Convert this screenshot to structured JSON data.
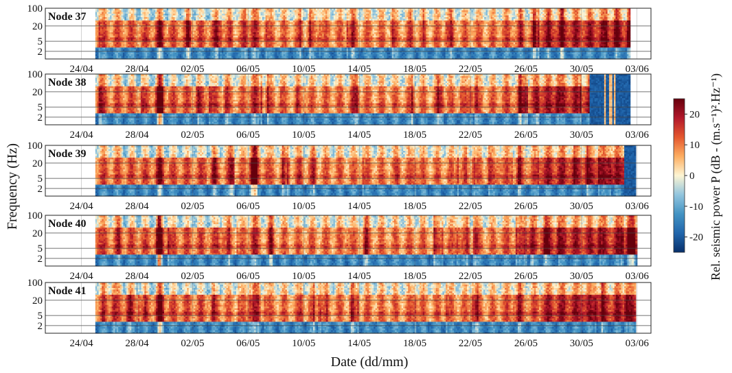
{
  "chart_data": {
    "type": "heatmap",
    "ylabel": "Frequency (Hz)",
    "xlabel": "Date (dd/mm)",
    "x_tick_labels": [
      "24/04",
      "28/04",
      "02/05",
      "06/05",
      "10/05",
      "14/05",
      "18/05",
      "22/05",
      "26/05",
      "30/05",
      "03/06"
    ],
    "y_tick_labels": [
      "2",
      "5",
      "20",
      "100"
    ],
    "y_ticks": [
      2,
      5,
      20,
      100
    ],
    "y_scale": "log",
    "ylim": [
      1,
      100
    ],
    "colorbar": {
      "label": "Rel. seismic power P (dB - (m.s⁻¹)².Hz⁻¹)",
      "ticks": [
        "20",
        "10",
        "0",
        "-10",
        "-20"
      ],
      "tick_values": [
        20,
        10,
        0,
        -10,
        -20
      ],
      "range": [
        -25,
        25
      ],
      "colormap": [
        "#08306b",
        "#2166ac",
        "#4393c3",
        "#92c5de",
        "#fdf5d3",
        "#fdae61",
        "#e4572e",
        "#b2182b",
        "#67000d"
      ]
    },
    "panels": [
      {
        "name": "Node 37",
        "data_end_day": 39.5,
        "dark_start_day": null
      },
      {
        "name": "Node 38",
        "data_end_day": 39.5,
        "dark_start_day": 36.5
      },
      {
        "name": "Node 39",
        "data_end_day": 39.9,
        "dark_start_day": 39.0
      },
      {
        "name": "Node 40",
        "data_end_day": 40.0,
        "dark_start_day": null
      },
      {
        "name": "Node 41",
        "data_end_day": 39.9,
        "dark_start_day": null
      }
    ]
  }
}
